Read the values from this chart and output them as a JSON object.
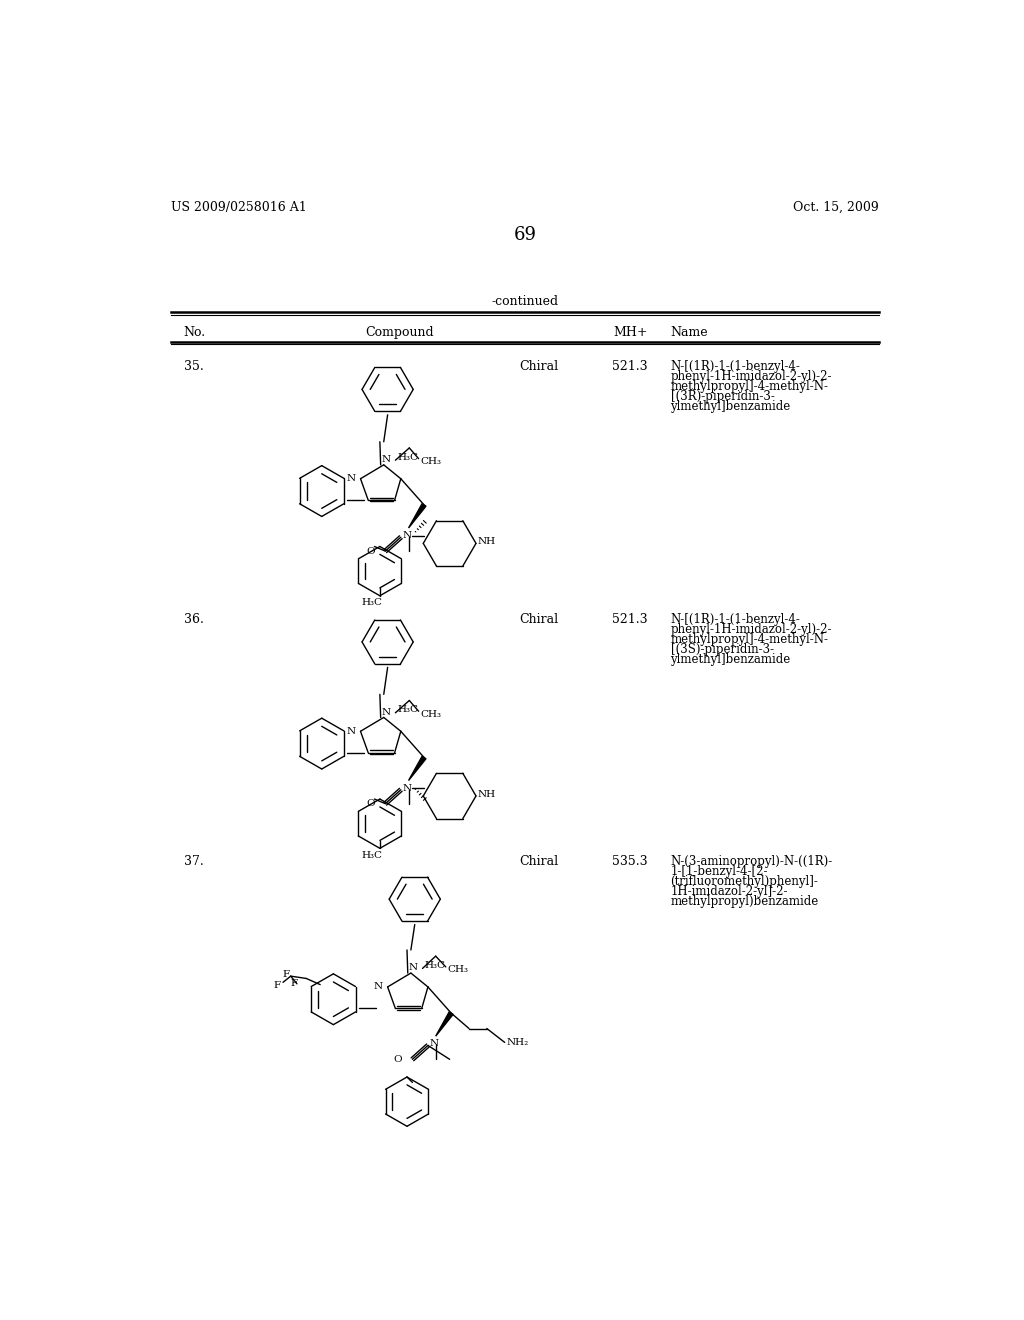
{
  "page_number": "69",
  "patent_number": "US 2009/0258016 A1",
  "patent_date": "Oct. 15, 2009",
  "continued_label": "-continued",
  "background_color": "#ffffff",
  "row35_no": "35.",
  "row35_chiral": "Chiral",
  "row35_mh": "521.3",
  "row35_name": [
    "N-[(1R)-1-(1-benzyl-4-",
    "phenyl-1H-imidazol-2-yl)-2-",
    "methylpropyl]-4-methyl-N-",
    "[(3R)-piperidin-3-",
    "ylmethyl]benzamide"
  ],
  "row36_no": "36.",
  "row36_chiral": "Chiral",
  "row36_mh": "521.3",
  "row36_name": [
    "N-[(1R)-1-(1-benzyl-4-",
    "phenyl-1H-imidazol-2-yl)-2-",
    "methylpropyl]-4-methyl-N-",
    "[(3S)-piperidin-3-",
    "ylmethyl]benzamide"
  ],
  "row37_no": "37.",
  "row37_chiral": "Chiral",
  "row37_mh": "535.3",
  "row37_name": [
    "N-(3-aminopropyl)-N-((1R)-",
    "1-[1-benzyl-4-[2-",
    "(trifluoromethyl)phenyl]-",
    "1H-imidazol-2-yl]-2-",
    "methylpropyl)benzamide"
  ]
}
